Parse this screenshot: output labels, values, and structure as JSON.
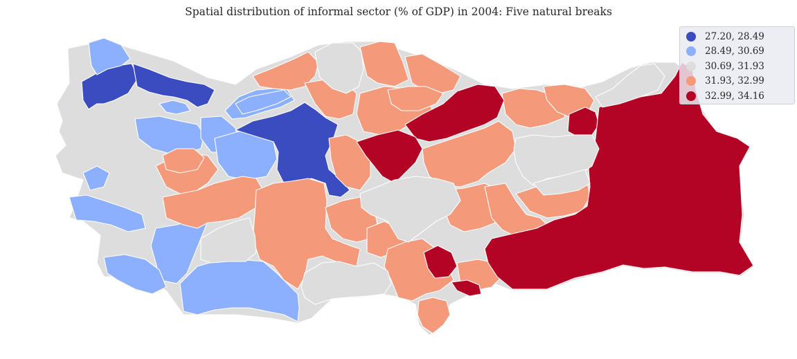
{
  "title": "Spatial distribution of informal sector (% of GDP) in 2004: Five natural breaks",
  "colors": {
    "c1": "#3b4cc0",
    "c2": "#8db0fe",
    "c3": "#dddddd",
    "c4": "#f49a7b",
    "c5": "#b40426"
  },
  "legend": [
    {
      "label": "27.20, 28.49",
      "color": "#3b4cc0"
    },
    {
      "label": "28.49, 30.69",
      "color": "#8db0fe"
    },
    {
      "label": "30.69, 31.93",
      "color": "#dddddd"
    },
    {
      "label": "31.93, 32.99",
      "color": "#f49a7b"
    },
    {
      "label": "32.99, 34.16",
      "color": "#b40426"
    }
  ]
}
